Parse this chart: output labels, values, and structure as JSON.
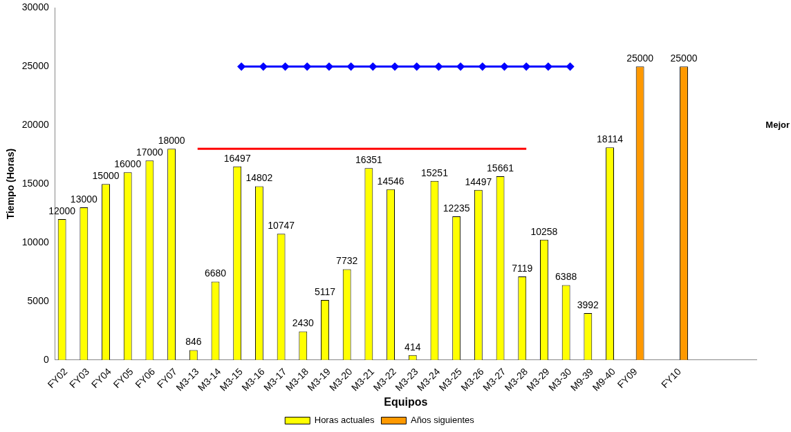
{
  "chart_data": {
    "type": "bar",
    "ylabel": "Tiempo (Horas)",
    "xlabel": "Equipos",
    "categories": [
      "FY02",
      "FY03",
      "FY04",
      "FY05",
      "FY06",
      "FY07",
      "M3-13",
      "M3-14",
      "M3-15",
      "M3-16",
      "M3-17",
      "M3-18",
      "M3-19",
      "M3-20",
      "M3-21",
      "M3-22",
      "M3-23",
      "M3-24",
      "M3-25",
      "M3-26",
      "M3-27",
      "M3-28",
      "M3-29",
      "M3-30",
      "M9-39",
      "M9-40",
      "FY09",
      null,
      "FY10",
      null,
      null,
      null
    ],
    "series": [
      {
        "name": "Horas actuales",
        "color": "#ffff00",
        "values": [
          12000,
          13000,
          15000,
          16000,
          17000,
          18000,
          846,
          6680,
          16497,
          14802,
          10747,
          2430,
          5117,
          7732,
          16351,
          14546,
          414,
          15251,
          12235,
          14497,
          15661,
          7119,
          10258,
          6388,
          3992,
          18114,
          null,
          null,
          null,
          null,
          null,
          null
        ],
        "value_labels": [
          "12000",
          "13000",
          "15000",
          "16000",
          "17000",
          "18000",
          "846",
          "6680",
          "16497",
          "14802",
          "10747",
          "2430",
          "5117",
          "7732",
          "16351",
          "14546",
          "414",
          "15251",
          "12235",
          "14497",
          "15661",
          "7119",
          "10258",
          "6388",
          "3992",
          "18114",
          null,
          null,
          null,
          null,
          null,
          null
        ]
      },
      {
        "name": "Años siguientes",
        "color": "#ff9900",
        "values": [
          null,
          null,
          null,
          null,
          null,
          null,
          null,
          null,
          null,
          null,
          null,
          null,
          null,
          null,
          null,
          null,
          null,
          null,
          null,
          null,
          null,
          null,
          null,
          null,
          null,
          null,
          25000,
          null,
          25000,
          null,
          null,
          null
        ],
        "value_labels": [
          null,
          null,
          null,
          null,
          null,
          null,
          null,
          null,
          null,
          null,
          null,
          null,
          null,
          null,
          null,
          null,
          null,
          null,
          null,
          null,
          null,
          null,
          null,
          null,
          null,
          null,
          "25000",
          null,
          "25000",
          null,
          null,
          null
        ]
      },
      {
        "type": "line",
        "color": "#ff0000",
        "marker": "none",
        "values": [
          null,
          null,
          null,
          null,
          null,
          null,
          18000,
          18000,
          18000,
          18000,
          18000,
          18000,
          18000,
          18000,
          18000,
          18000,
          18000,
          18000,
          18000,
          18000,
          18000,
          18000,
          null,
          null,
          null,
          null,
          null,
          null,
          null,
          null,
          null,
          null
        ]
      },
      {
        "type": "line",
        "color": "#0000ff",
        "marker": "diamond",
        "values": [
          null,
          null,
          null,
          null,
          null,
          null,
          null,
          null,
          25000,
          25000,
          25000,
          25000,
          25000,
          25000,
          25000,
          25000,
          25000,
          25000,
          25000,
          25000,
          25000,
          25000,
          25000,
          25000,
          null,
          null,
          null,
          null,
          null,
          null,
          null,
          null
        ]
      }
    ],
    "ylim": [
      0,
      30000
    ],
    "yticks": [
      0,
      5000,
      10000,
      15000,
      20000,
      25000,
      30000
    ],
    "grid": false,
    "legend": "bottom",
    "annotations": [
      "Mejor"
    ]
  }
}
